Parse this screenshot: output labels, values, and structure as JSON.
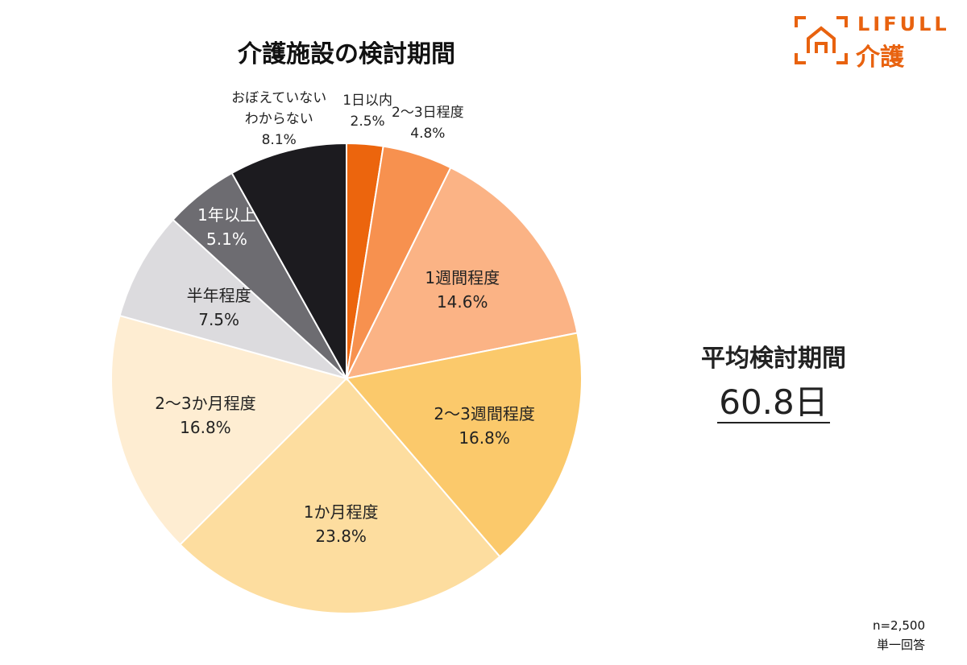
{
  "chart_data": {
    "type": "pie",
    "title": "介護施設の検討期間",
    "categories": [
      "1日以内",
      "2〜3日程度",
      "1週間程度",
      "2〜3週間程度",
      "1か月程度",
      "2〜3か月程度",
      "半年程度",
      "1年以上",
      "おぼえていない\nわからない"
    ],
    "values": [
      2.5,
      4.8,
      14.6,
      16.8,
      23.8,
      16.8,
      7.5,
      5.1,
      8.1
    ],
    "value_labels": [
      "2.5%",
      "4.8%",
      "14.6%",
      "16.8%",
      "23.8%",
      "16.8%",
      "7.5%",
      "5.1%",
      "8.1%"
    ],
    "colors": [
      "#ec650d",
      "#f7914f",
      "#fbb385",
      "#fbc96b",
      "#fddd9f",
      "#feedd2",
      "#dcdbde",
      "#6d6c71",
      "#1c1b1f"
    ],
    "annotations": {
      "average_label": "平均検討期間",
      "average_value": "60.8日",
      "sample": "n=2,500",
      "answer_type": "単一回答"
    }
  },
  "logo": {
    "brand": "LIFULL",
    "service": "介護"
  }
}
